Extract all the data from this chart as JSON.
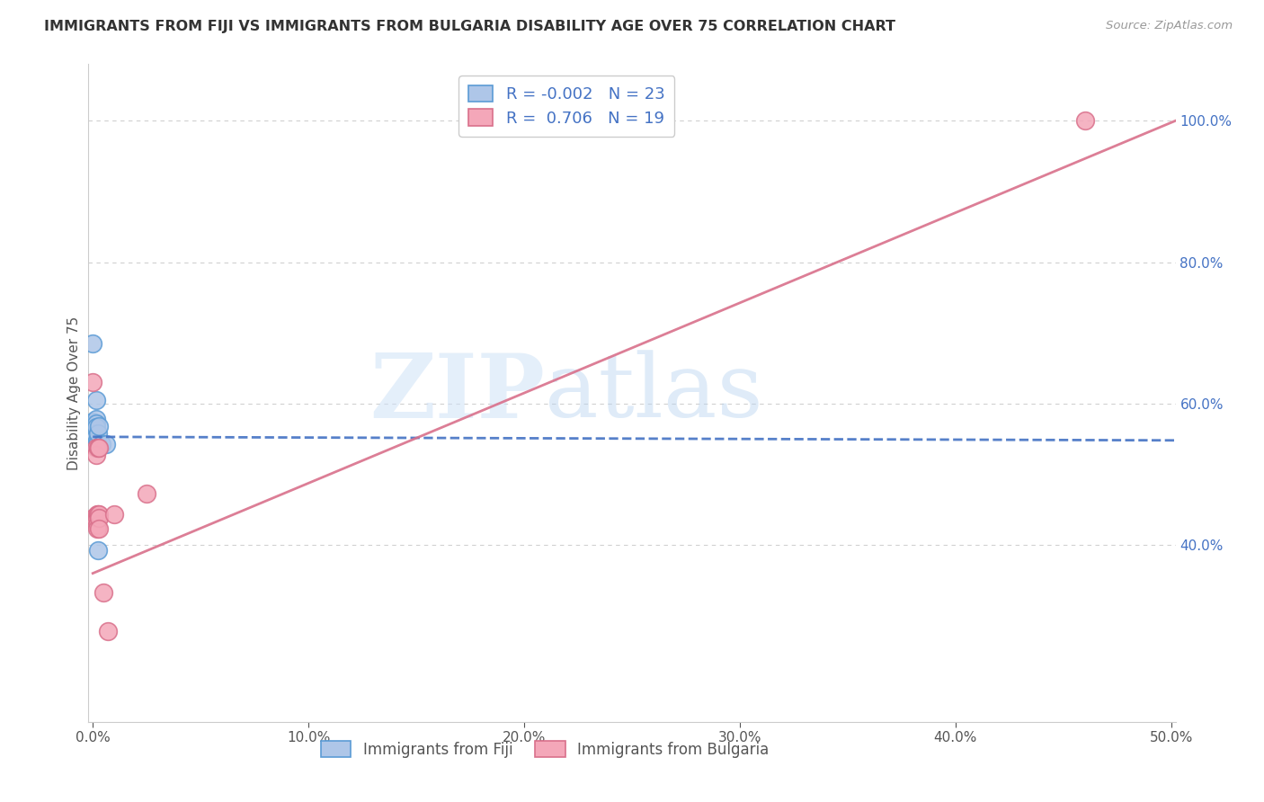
{
  "title": "IMMIGRANTS FROM FIJI VS IMMIGRANTS FROM BULGARIA DISABILITY AGE OVER 75 CORRELATION CHART",
  "source": "Source: ZipAtlas.com",
  "ylabel": "Disability Age Over 75",
  "xlim": [
    -0.002,
    0.502
  ],
  "ylim": [
    0.15,
    1.08
  ],
  "x_ticks": [
    0.0,
    0.1,
    0.2,
    0.3,
    0.4,
    0.5
  ],
  "x_tick_labels": [
    "0.0%",
    "10.0%",
    "20.0%",
    "30.0%",
    "40.0%",
    "50.0%"
  ],
  "y_ticks_right": [
    0.4,
    0.6,
    0.8,
    1.0
  ],
  "y_tick_labels_right": [
    "40.0%",
    "60.0%",
    "80.0%",
    "100.0%"
  ],
  "fiji_color": "#aec6e8",
  "fiji_edge_color": "#5b9bd5",
  "bulgaria_color": "#f4a7b9",
  "bulgaria_edge_color": "#d9708b",
  "fiji_R": "-0.002",
  "fiji_N": "23",
  "bulgaria_R": "0.706",
  "bulgaria_N": "19",
  "fiji_line_color": "#4472c4",
  "bulgaria_line_color": "#d9708b",
  "fiji_x": [
    0.0,
    0.0,
    0.0,
    0.0,
    0.0,
    0.001,
    0.001,
    0.001,
    0.001,
    0.001,
    0.001,
    0.0015,
    0.0015,
    0.0015,
    0.0015,
    0.002,
    0.002,
    0.002,
    0.0025,
    0.0025,
    0.003,
    0.004,
    0.006
  ],
  "fiji_y": [
    0.685,
    0.575,
    0.565,
    0.558,
    0.548,
    0.572,
    0.567,
    0.562,
    0.557,
    0.552,
    0.543,
    0.605,
    0.578,
    0.572,
    0.567,
    0.548,
    0.543,
    0.538,
    0.558,
    0.392,
    0.568,
    0.543,
    0.543
  ],
  "bulgaria_x": [
    0.0,
    0.0008,
    0.0015,
    0.0015,
    0.002,
    0.002,
    0.002,
    0.002,
    0.0025,
    0.0025,
    0.003,
    0.003,
    0.003,
    0.003,
    0.005,
    0.007,
    0.01,
    0.025,
    0.46
  ],
  "bulgaria_y": [
    0.63,
    0.44,
    0.538,
    0.528,
    0.443,
    0.438,
    0.428,
    0.423,
    0.538,
    0.443,
    0.538,
    0.443,
    0.438,
    0.423,
    0.333,
    0.278,
    0.443,
    0.473,
    1.0
  ],
  "fiji_line_y0": 0.553,
  "fiji_line_y1": 0.548,
  "bulgaria_line_y0": 0.36,
  "bulgaria_line_y1": 1.0,
  "background_color": "#ffffff",
  "grid_color": "#d0d0d0"
}
